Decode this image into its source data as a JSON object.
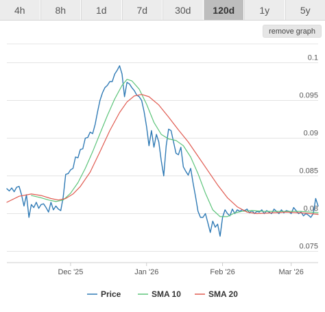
{
  "tabs": [
    {
      "label": "4h",
      "active": false
    },
    {
      "label": "8h",
      "active": false
    },
    {
      "label": "1d",
      "active": false
    },
    {
      "label": "7d",
      "active": false
    },
    {
      "label": "30d",
      "active": false
    },
    {
      "label": "120d",
      "active": true
    },
    {
      "label": "1y",
      "active": false
    },
    {
      "label": "5y",
      "active": false
    }
  ],
  "remove_graph_label": "remove graph",
  "chart_data": {
    "type": "line",
    "x_tick_labels": [
      "Dec '25",
      "Jan '26",
      "Feb '26",
      "Mar '26"
    ],
    "x_tick_days": [
      26,
      57,
      88,
      116
    ],
    "y_tick_labels": [
      "0.075",
      "0.08",
      "0.085",
      "0.09",
      "0.095",
      "0.1"
    ],
    "xlim": [
      0,
      127
    ],
    "ylim": [
      0.0735,
      0.1025
    ],
    "grid": true,
    "legend_position": "bottom",
    "series": [
      {
        "name": "Price",
        "color": "#2f7ab5",
        "values": [
          0.0833,
          0.083,
          0.0834,
          0.0829,
          0.0835,
          0.0836,
          0.0825,
          0.081,
          0.0825,
          0.0795,
          0.0812,
          0.0808,
          0.0815,
          0.0807,
          0.0812,
          0.0813,
          0.0808,
          0.0802,
          0.0815,
          0.0805,
          0.081,
          0.0806,
          0.0804,
          0.0822,
          0.0852,
          0.0853,
          0.0858,
          0.086,
          0.0875,
          0.0874,
          0.0885,
          0.0886,
          0.09,
          0.0901,
          0.0908,
          0.0906,
          0.0918,
          0.0935,
          0.095,
          0.096,
          0.0967,
          0.097,
          0.0975,
          0.0975,
          0.0985,
          0.099,
          0.0996,
          0.0985,
          0.0955,
          0.0974,
          0.0972,
          0.0967,
          0.0963,
          0.0957,
          0.0955,
          0.095,
          0.0935,
          0.0915,
          0.089,
          0.091,
          0.0888,
          0.0905,
          0.0895,
          0.087,
          0.085,
          0.089,
          0.0912,
          0.091,
          0.0895,
          0.088,
          0.0878,
          0.0888,
          0.0862,
          0.0856,
          0.0851,
          0.086,
          0.084,
          0.0822,
          0.0803,
          0.0795,
          0.0795,
          0.08,
          0.0788,
          0.0775,
          0.079,
          0.0782,
          0.0786,
          0.077,
          0.0795,
          0.0805,
          0.08,
          0.0797,
          0.0806,
          0.08,
          0.0805,
          0.0803,
          0.0805,
          0.0804,
          0.0806,
          0.0801,
          0.0804,
          0.08,
          0.0803,
          0.0802,
          0.0805,
          0.08,
          0.0804,
          0.0802,
          0.08,
          0.0806,
          0.0803,
          0.08,
          0.0805,
          0.0801,
          0.0804,
          0.0803,
          0.08,
          0.0808,
          0.0804,
          0.08,
          0.0802,
          0.0797,
          0.08,
          0.0798,
          0.0795,
          0.08,
          0.082,
          0.081
        ]
      },
      {
        "name": "SMA 10",
        "color": "#5cc47a",
        "points": [
          [
            10,
            0.0824
          ],
          [
            14,
            0.0821
          ],
          [
            17,
            0.0818
          ],
          [
            20,
            0.0816
          ],
          [
            23,
            0.0818
          ],
          [
            26,
            0.0827
          ],
          [
            29,
            0.0841
          ],
          [
            32,
            0.086
          ],
          [
            35,
            0.0882
          ],
          [
            38,
            0.0906
          ],
          [
            41,
            0.093
          ],
          [
            44,
            0.0952
          ],
          [
            47,
            0.097
          ],
          [
            49,
            0.0978
          ],
          [
            51,
            0.0976
          ],
          [
            54,
            0.0965
          ],
          [
            57,
            0.0945
          ],
          [
            60,
            0.0921
          ],
          [
            63,
            0.0905
          ],
          [
            66,
            0.0899
          ],
          [
            69,
            0.0897
          ],
          [
            72,
            0.089
          ],
          [
            75,
            0.0875
          ],
          [
            78,
            0.0853
          ],
          [
            81,
            0.0827
          ],
          [
            84,
            0.0805
          ],
          [
            87,
            0.0796
          ],
          [
            90,
            0.0796
          ],
          [
            93,
            0.0801
          ],
          [
            96,
            0.0803
          ],
          [
            100,
            0.0804
          ],
          [
            105,
            0.0803
          ],
          [
            110,
            0.0803
          ],
          [
            115,
            0.0803
          ],
          [
            120,
            0.0803
          ],
          [
            124,
            0.0802
          ],
          [
            127,
            0.0801
          ]
        ]
      },
      {
        "name": "SMA 20",
        "color": "#e05a50",
        "points": [
          [
            0,
            0.0815
          ],
          [
            5,
            0.0823
          ],
          [
            10,
            0.0826
          ],
          [
            14,
            0.0824
          ],
          [
            18,
            0.082
          ],
          [
            21,
            0.0818
          ],
          [
            24,
            0.082
          ],
          [
            27,
            0.0826
          ],
          [
            30,
            0.0836
          ],
          [
            34,
            0.0855
          ],
          [
            38,
            0.0882
          ],
          [
            42,
            0.091
          ],
          [
            46,
            0.0934
          ],
          [
            49,
            0.0948
          ],
          [
            52,
            0.0956
          ],
          [
            55,
            0.0958
          ],
          [
            58,
            0.0955
          ],
          [
            62,
            0.0944
          ],
          [
            66,
            0.0928
          ],
          [
            70,
            0.0911
          ],
          [
            74,
            0.0895
          ],
          [
            78,
            0.0876
          ],
          [
            82,
            0.0857
          ],
          [
            86,
            0.0838
          ],
          [
            90,
            0.0821
          ],
          [
            94,
            0.0809
          ],
          [
            98,
            0.0802
          ],
          [
            102,
            0.08
          ],
          [
            108,
            0.0801
          ],
          [
            114,
            0.0802
          ],
          [
            120,
            0.0801
          ],
          [
            124,
            0.08
          ],
          [
            127,
            0.0799
          ]
        ]
      }
    ]
  }
}
